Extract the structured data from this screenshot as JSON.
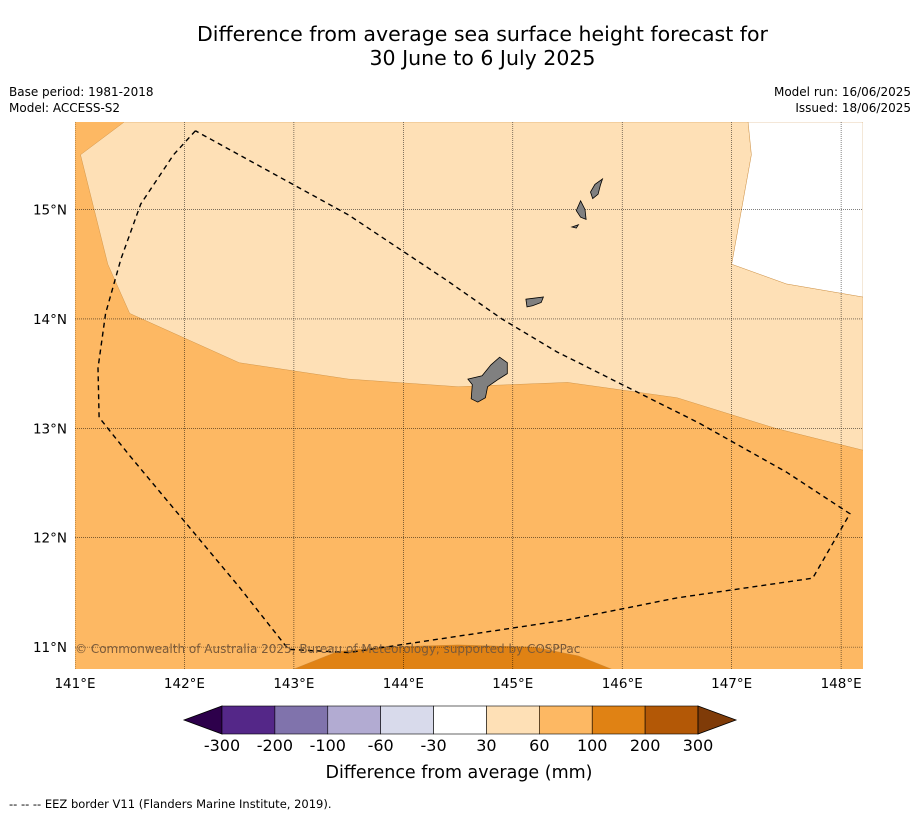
{
  "title": {
    "line1": "Difference from average sea surface height forecast for",
    "line2": "30 June to 6 July 2025"
  },
  "meta": {
    "base_period": "Base period: 1981-2018",
    "model": "Model: ACCESS-S2",
    "model_run": "Model run: 16/06/2025",
    "issued": "Issued: 18/06/2025"
  },
  "map": {
    "lon_range": [
      141.0,
      148.2
    ],
    "lat_range": [
      10.8,
      15.8
    ],
    "lon_ticks": [
      141,
      142,
      143,
      144,
      145,
      146,
      147,
      148
    ],
    "lon_labels": [
      "141°E",
      "142°E",
      "143°E",
      "144°E",
      "145°E",
      "146°E",
      "147°E",
      "148°E"
    ],
    "lat_ticks": [
      11,
      12,
      13,
      14,
      15
    ],
    "lat_labels": [
      "11°N",
      "12°N",
      "13°N",
      "14°N",
      "15°N"
    ],
    "copyright": "© Commonwealth of Australia 2025, Bureau of Meteorology, supported by COSPPac",
    "land_color": "#808080",
    "eez_border": [
      [
        142.1,
        15.72
      ],
      [
        141.9,
        15.5
      ],
      [
        141.6,
        15.05
      ],
      [
        141.42,
        14.55
      ],
      [
        141.28,
        14.05
      ],
      [
        141.21,
        13.55
      ],
      [
        141.22,
        13.1
      ],
      [
        141.5,
        12.75
      ],
      [
        142.0,
        12.15
      ],
      [
        142.5,
        11.55
      ],
      [
        142.95,
        10.98
      ],
      [
        143.5,
        10.95
      ],
      [
        144.5,
        11.1
      ],
      [
        145.5,
        11.25
      ],
      [
        146.5,
        11.45
      ],
      [
        147.74,
        11.63
      ],
      [
        148.08,
        12.22
      ],
      [
        147.5,
        12.6
      ],
      [
        146.7,
        13.05
      ],
      [
        146.0,
        13.4
      ],
      [
        145.4,
        13.7
      ],
      [
        144.9,
        14.0
      ],
      [
        144.4,
        14.35
      ],
      [
        143.5,
        14.95
      ],
      [
        142.1,
        15.72
      ]
    ],
    "regions": [
      {
        "name": "100-200",
        "color": "#e08214",
        "polygon": [
          [
            143.0,
            10.8
          ],
          [
            143.4,
            10.96
          ],
          [
            143.8,
            11.0
          ],
          [
            144.5,
            11.02
          ],
          [
            145.2,
            11.0
          ],
          [
            145.6,
            10.92
          ],
          [
            145.9,
            10.8
          ]
        ]
      },
      {
        "name": "30-60",
        "color": "#fee0b6",
        "polygon": [
          [
            141.45,
            15.8
          ],
          [
            147.15,
            15.8
          ],
          [
            147.18,
            15.5
          ],
          [
            147.0,
            14.5
          ],
          [
            147.5,
            14.32
          ],
          [
            148.2,
            14.2
          ],
          [
            148.2,
            12.8
          ],
          [
            147.4,
            13.0
          ],
          [
            146.5,
            13.28
          ],
          [
            145.5,
            13.42
          ],
          [
            144.5,
            13.38
          ],
          [
            143.5,
            13.45
          ],
          [
            142.5,
            13.6
          ],
          [
            141.5,
            14.05
          ],
          [
            141.3,
            14.5
          ],
          [
            141.05,
            15.5
          ]
        ]
      },
      {
        "name": "-30-30",
        "color": "#ffffff",
        "polygon": [
          [
            147.15,
            15.8
          ],
          [
            148.2,
            15.8
          ],
          [
            148.2,
            14.2
          ],
          [
            147.5,
            14.32
          ],
          [
            147.0,
            14.5
          ],
          [
            147.18,
            15.5
          ]
        ]
      }
    ],
    "islands": [
      {
        "name": "Guam",
        "polygon": [
          [
            144.88,
            13.65
          ],
          [
            144.95,
            13.6
          ],
          [
            144.95,
            13.5
          ],
          [
            144.87,
            13.45
          ],
          [
            144.77,
            13.38
          ],
          [
            144.75,
            13.28
          ],
          [
            144.68,
            13.24
          ],
          [
            144.62,
            13.27
          ],
          [
            144.63,
            13.4
          ],
          [
            144.59,
            13.45
          ],
          [
            144.72,
            13.48
          ],
          [
            144.8,
            13.58
          ]
        ]
      },
      {
        "name": "Rota",
        "polygon": [
          [
            145.12,
            14.18
          ],
          [
            145.28,
            14.2
          ],
          [
            145.26,
            14.15
          ],
          [
            145.18,
            14.12
          ],
          [
            145.13,
            14.11
          ]
        ]
      },
      {
        "name": "Tinian",
        "polygon": [
          [
            145.62,
            15.08
          ],
          [
            145.66,
            15.0
          ],
          [
            145.67,
            14.91
          ],
          [
            145.62,
            14.93
          ],
          [
            145.58,
            14.99
          ]
        ]
      },
      {
        "name": "Saipan",
        "polygon": [
          [
            145.82,
            15.28
          ],
          [
            145.75,
            15.23
          ],
          [
            145.71,
            15.16
          ],
          [
            145.73,
            15.1
          ],
          [
            145.78,
            15.14
          ],
          [
            145.8,
            15.22
          ]
        ]
      },
      {
        "name": "Aguijan",
        "polygon": [
          [
            145.54,
            14.84
          ],
          [
            145.6,
            14.86
          ],
          [
            145.58,
            14.83
          ]
        ]
      }
    ]
  },
  "colorbar": {
    "colors": [
      "#2d004b",
      "#542788",
      "#8073ac",
      "#b2abd2",
      "#d8daeb",
      "#ffffff",
      "#fee0b6",
      "#fdb863",
      "#e08214",
      "#b35806",
      "#7f3b08"
    ],
    "ticks": [
      "-300",
      "-200",
      "-100",
      "-60",
      "-30",
      "30",
      "60",
      "100",
      "200",
      "300"
    ],
    "label": "Difference from average (mm)"
  },
  "footer": {
    "marker": "--  --  --",
    "text": "EEZ border V11 (Flanders Marine Institute, 2019)."
  },
  "colors": {
    "ocean_default": "#fdb863"
  }
}
